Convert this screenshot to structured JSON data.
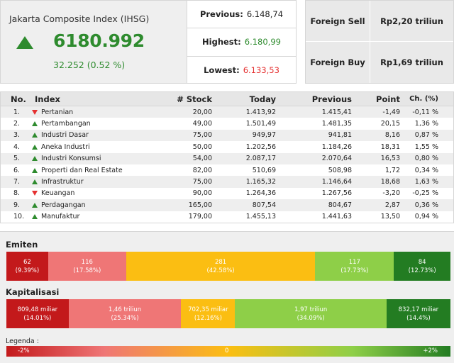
{
  "ihsg": {
    "title": "Jakarta Composite Index (IHSG)",
    "direction_icon": "up-arrow-icon",
    "value": "6180.992",
    "change": "32.252 (0.52 %)"
  },
  "stats": {
    "previous_label": "Previous:",
    "previous_value": "6.148,74",
    "highest_label": "Highest:",
    "highest_value": "6.180,99",
    "lowest_label": "Lowest:",
    "lowest_value": "6.133,53"
  },
  "foreign": {
    "sell_label": "Foreign Sell",
    "sell_value": "Rp2,20 triliun",
    "buy_label": "Foreign Buy",
    "buy_value": "Rp1,69 triliun"
  },
  "table": {
    "headers": {
      "no": "No.",
      "index": "Index",
      "stock": "# Stock",
      "today": "Today",
      "previous": "Previous",
      "point": "Point",
      "change": "Ch. (%)"
    },
    "rows": [
      {
        "no": "1.",
        "direction": "down",
        "index": "Pertanian",
        "stock": "20,00",
        "today": "1.413,92",
        "previous": "1.415,41",
        "point": "-1,49",
        "change": "-0,11 %"
      },
      {
        "no": "2.",
        "direction": "up",
        "index": "Pertambangan",
        "stock": "49,00",
        "today": "1.501,49",
        "previous": "1.481,35",
        "point": "20,15",
        "change": "1,36 %"
      },
      {
        "no": "3.",
        "direction": "up",
        "index": "Industri Dasar",
        "stock": "75,00",
        "today": "949,97",
        "previous": "941,81",
        "point": "8,16",
        "change": "0,87 %"
      },
      {
        "no": "4.",
        "direction": "up",
        "index": "Aneka Industri",
        "stock": "50,00",
        "today": "1.202,56",
        "previous": "1.184,26",
        "point": "18,31",
        "change": "1,55 %"
      },
      {
        "no": "5.",
        "direction": "up",
        "index": "Industri Konsumsi",
        "stock": "54,00",
        "today": "2.087,17",
        "previous": "2.070,64",
        "point": "16,53",
        "change": "0,80 %"
      },
      {
        "no": "6.",
        "direction": "up",
        "index": "Properti dan Real Estate",
        "stock": "82,00",
        "today": "510,69",
        "previous": "508,98",
        "point": "1,72",
        "change": "0,34 %"
      },
      {
        "no": "7.",
        "direction": "up",
        "index": "Infrastruktur",
        "stock": "75,00",
        "today": "1.165,32",
        "previous": "1.146,64",
        "point": "18,68",
        "change": "1,63 %"
      },
      {
        "no": "8.",
        "direction": "down",
        "index": "Keuangan",
        "stock": "90,00",
        "today": "1.264,36",
        "previous": "1.267,56",
        "point": "-3,20",
        "change": "-0,25 %"
      },
      {
        "no": "9.",
        "direction": "up",
        "index": "Perdagangan",
        "stock": "165,00",
        "today": "807,54",
        "previous": "804,67",
        "point": "2,87",
        "change": "0,36 %"
      },
      {
        "no": "10.",
        "direction": "up",
        "index": "Manufaktur",
        "stock": "179,00",
        "today": "1.455,13",
        "previous": "1.441,63",
        "point": "13,50",
        "change": "0,94 %"
      }
    ]
  },
  "emiten": {
    "title": "Emiten",
    "segments": [
      {
        "value": "62",
        "pct": "(9.39%)",
        "share": 9.39,
        "color": "#c3191b"
      },
      {
        "value": "116",
        "pct": "(17.58%)",
        "share": 17.58,
        "color": "#ef7676"
      },
      {
        "value": "281",
        "pct": "(42.58%)",
        "share": 42.58,
        "color": "#fbbe12"
      },
      {
        "value": "117",
        "pct": "(17.73%)",
        "share": 17.73,
        "color": "#8ecf48"
      },
      {
        "value": "84",
        "pct": "(12.73%)",
        "share": 12.73,
        "color": "#237c22"
      }
    ]
  },
  "kapitalisasi": {
    "title": "Kapitalisasi",
    "segments": [
      {
        "value": "809,48 miliar",
        "pct": "(14.01%)",
        "share": 14.01,
        "color": "#c3191b"
      },
      {
        "value": "1,46 triliun",
        "pct": "(25.34%)",
        "share": 25.34,
        "color": "#ef7676"
      },
      {
        "value": "702,35 miliar",
        "pct": "(12.16%)",
        "share": 12.16,
        "color": "#fbbe12"
      },
      {
        "value": "1,97 triliun",
        "pct": "(34.09%)",
        "share": 34.09,
        "color": "#8ecf48"
      },
      {
        "value": "832,17 miliar",
        "pct": "(14.4%)",
        "share": 14.4,
        "color": "#237c22"
      }
    ]
  },
  "legend": {
    "title": "Legenda :",
    "min": "-2%",
    "mid": "0",
    "max": "+2%"
  }
}
